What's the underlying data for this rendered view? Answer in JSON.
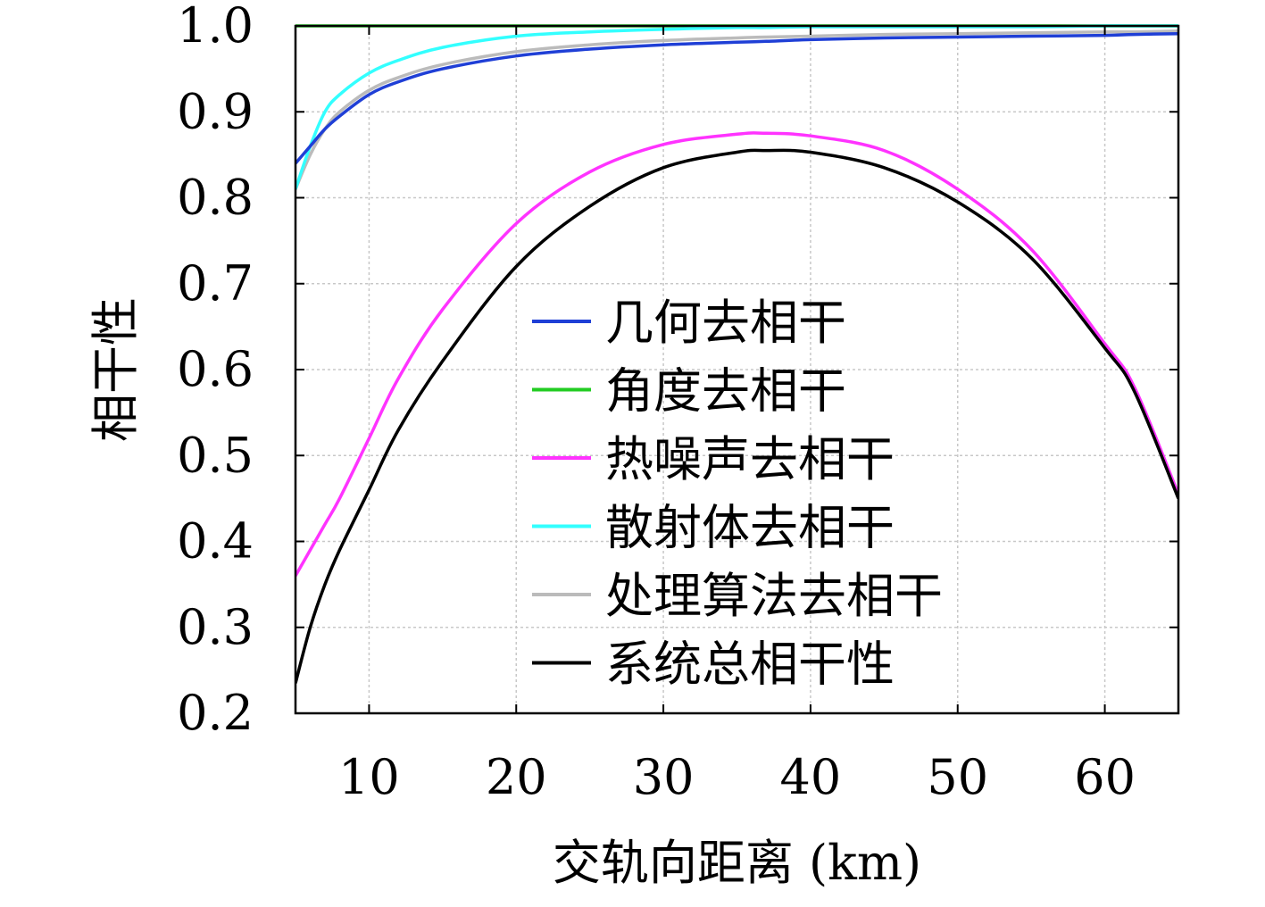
{
  "chart_data": {
    "type": "line",
    "xlabel": "交轨向距离 (km)",
    "ylabel": "相干性",
    "xlim": [
      5,
      65
    ],
    "ylim": [
      0.2,
      1.0
    ],
    "xticks": [
      10,
      20,
      30,
      40,
      50,
      60
    ],
    "yticks": [
      0.2,
      0.3,
      0.4,
      0.5,
      0.6,
      0.7,
      0.8,
      0.9,
      1.0
    ],
    "ytick_labels": [
      "0.2",
      "0.3",
      "0.4",
      "0.5",
      "0.6",
      "0.7",
      "0.8",
      "0.9",
      "1.0"
    ],
    "grid": true,
    "legend_position": "center-right",
    "x": [
      5,
      6,
      7,
      8,
      10,
      12,
      15,
      20,
      25,
      30,
      35,
      37,
      40,
      45,
      50,
      55,
      60,
      62,
      65
    ],
    "series": [
      {
        "name": "几何去相干",
        "color": "#1f3fd6",
        "values": [
          0.84,
          0.86,
          0.88,
          0.895,
          0.92,
          0.935,
          0.95,
          0.965,
          0.973,
          0.978,
          0.981,
          0.982,
          0.984,
          0.986,
          0.987,
          0.988,
          0.989,
          0.99,
          0.991
        ]
      },
      {
        "name": "角度去相干",
        "color": "#22cc22",
        "values": [
          1.0,
          1.0,
          1.0,
          1.0,
          1.0,
          1.0,
          1.0,
          1.0,
          1.0,
          1.0,
          1.0,
          1.0,
          1.0,
          1.0,
          1.0,
          1.0,
          1.0,
          1.0,
          1.0
        ]
      },
      {
        "name": "热噪声去相干",
        "color": "#ff33ff",
        "values": [
          0.36,
          0.39,
          0.42,
          0.45,
          0.52,
          0.59,
          0.67,
          0.77,
          0.83,
          0.862,
          0.874,
          0.875,
          0.872,
          0.855,
          0.81,
          0.74,
          0.63,
          0.58,
          0.455
        ]
      },
      {
        "name": "散射体去相干",
        "color": "#33ffff",
        "values": [
          0.81,
          0.86,
          0.9,
          0.92,
          0.945,
          0.96,
          0.975,
          0.988,
          0.993,
          0.996,
          0.998,
          0.998,
          0.999,
          0.999,
          0.999,
          0.999,
          1.0,
          1.0,
          1.0
        ]
      },
      {
        "name": "处理算法去相干",
        "color": "#bbbbbb",
        "values": [
          0.81,
          0.85,
          0.88,
          0.9,
          0.925,
          0.94,
          0.955,
          0.97,
          0.978,
          0.983,
          0.986,
          0.987,
          0.988,
          0.99,
          0.991,
          0.992,
          0.993,
          0.993,
          0.994
        ]
      },
      {
        "name": "系统总相干性",
        "color": "#000000",
        "values": [
          0.235,
          0.3,
          0.35,
          0.39,
          0.46,
          0.53,
          0.61,
          0.72,
          0.79,
          0.835,
          0.853,
          0.855,
          0.853,
          0.835,
          0.795,
          0.73,
          0.625,
          0.575,
          0.45
        ]
      }
    ]
  }
}
